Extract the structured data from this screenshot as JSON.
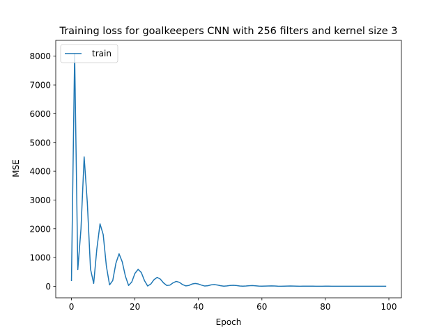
{
  "chart_data": {
    "type": "line",
    "title": "Training loss for goalkeepers CNN with 256 filters and kernel size 3",
    "xlabel": "Epoch",
    "ylabel": "MSE",
    "xlim": [
      -4.95,
      103.95
    ],
    "ylim": [
      -400,
      8550
    ],
    "x_ticks": [
      0,
      20,
      40,
      60,
      80,
      100
    ],
    "y_ticks": [
      0,
      1000,
      2000,
      3000,
      4000,
      5000,
      6000,
      7000,
      8000
    ],
    "grid": false,
    "legend": {
      "position": "top-left",
      "entries": [
        "train"
      ]
    },
    "series": [
      {
        "name": "train",
        "color": "#1f77b4",
        "x": [
          0,
          1,
          2,
          3,
          4,
          5,
          6,
          7,
          8,
          9,
          10,
          11,
          12,
          13,
          14,
          15,
          16,
          17,
          18,
          19,
          20,
          21,
          22,
          23,
          24,
          25,
          26,
          27,
          28,
          29,
          30,
          31,
          32,
          33,
          34,
          35,
          36,
          37,
          38,
          39,
          40,
          41,
          42,
          43,
          44,
          45,
          46,
          47,
          48,
          49,
          50,
          51,
          52,
          53,
          54,
          55,
          56,
          57,
          58,
          59,
          60,
          61,
          62,
          63,
          64,
          65,
          66,
          67,
          68,
          69,
          70,
          71,
          72,
          73,
          74,
          75,
          76,
          77,
          78,
          79,
          80,
          81,
          82,
          83,
          84,
          85,
          86,
          87,
          88,
          89,
          90,
          91,
          92,
          93,
          94,
          95,
          96,
          97,
          98,
          99
        ],
        "values": [
          200,
          8100,
          580,
          2000,
          4500,
          2900,
          600,
          100,
          1300,
          2170,
          1800,
          700,
          50,
          200,
          800,
          1130,
          850,
          350,
          30,
          150,
          450,
          590,
          480,
          200,
          10,
          80,
          230,
          310,
          250,
          120,
          30,
          40,
          120,
          170,
          140,
          60,
          15,
          30,
          80,
          100,
          80,
          40,
          10,
          20,
          50,
          60,
          45,
          20,
          5,
          15,
          30,
          35,
          25,
          10,
          5,
          10,
          20,
          25,
          18,
          8,
          5,
          8,
          12,
          15,
          10,
          5,
          3,
          6,
          9,
          10,
          7,
          4,
          2,
          4,
          6,
          6,
          4,
          3,
          2,
          3,
          4,
          4,
          3,
          2,
          1,
          2,
          3,
          3,
          2,
          1,
          1,
          1,
          2,
          2,
          1,
          1,
          1,
          1,
          1,
          1
        ]
      }
    ]
  }
}
